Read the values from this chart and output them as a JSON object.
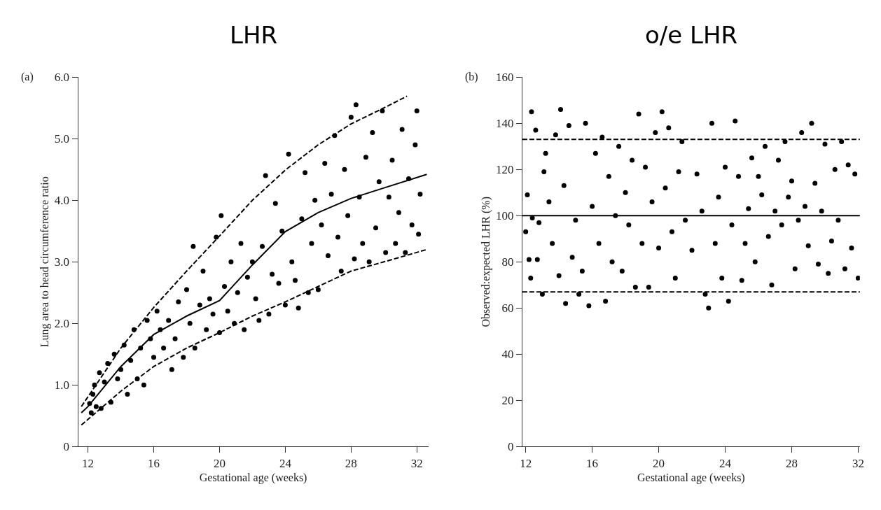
{
  "chart_data": [
    {
      "type": "scatter",
      "title": "LHR",
      "xlabel": "Gestational age (weeks)",
      "ylabel": "Lung area to head circumference ratio",
      "annotations": [
        "(a)"
      ],
      "xlim": [
        11.4,
        32.7
      ],
      "xticks": [
        12,
        16,
        20,
        24,
        28,
        32
      ],
      "ylim": [
        0,
        6
      ],
      "yticks": [
        0,
        {
          "value": 1,
          "label": "1.0"
        },
        {
          "value": 2,
          "label": "2.0"
        },
        {
          "value": 3,
          "label": "3.0"
        },
        {
          "value": 4,
          "label": "4.0"
        },
        {
          "value": 5,
          "label": "5.0"
        },
        {
          "value": 6,
          "label": "6.0"
        }
      ],
      "series": [
        {
          "marker": "circle",
          "color": "#000000",
          "x": [
            12.1,
            12.2,
            12.3,
            12.4,
            12.5,
            12.7,
            12.8,
            13.0,
            13.2,
            13.4,
            13.6,
            13.8,
            14.0,
            14.2,
            14.4,
            14.6,
            14.8,
            15.0,
            15.2,
            15.4,
            15.6,
            15.8,
            16.0,
            16.2,
            16.4,
            16.6,
            16.9,
            17.1,
            17.3,
            17.5,
            17.8,
            18.0,
            18.2,
            18.4,
            18.5,
            18.8,
            19.0,
            19.2,
            19.4,
            19.6,
            19.8,
            20.0,
            20.1,
            20.3,
            20.5,
            20.7,
            20.9,
            21.1,
            21.3,
            21.5,
            21.7,
            22.0,
            22.2,
            22.4,
            22.6,
            22.8,
            23.0,
            23.2,
            23.4,
            23.6,
            23.8,
            24.0,
            24.2,
            24.4,
            24.6,
            24.8,
            25.0,
            25.2,
            25.4,
            25.6,
            25.8,
            26.0,
            26.2,
            26.4,
            26.6,
            26.8,
            27.0,
            27.2,
            27.4,
            27.6,
            27.8,
            28.0,
            28.2,
            28.3,
            28.5,
            28.7,
            28.9,
            29.1,
            29.3,
            29.5,
            29.7,
            29.9,
            30.1,
            30.3,
            30.5,
            30.7,
            30.9,
            31.1,
            31.3,
            31.5,
            31.7,
            31.9,
            32.0,
            32.1,
            32.2
          ],
          "values": [
            0.7,
            0.55,
            0.85,
            1.0,
            0.65,
            1.2,
            0.62,
            1.05,
            1.35,
            0.72,
            1.5,
            1.1,
            1.25,
            1.65,
            0.85,
            1.4,
            1.9,
            1.1,
            1.6,
            1.0,
            2.05,
            1.75,
            1.45,
            2.2,
            1.9,
            1.6,
            2.05,
            1.25,
            1.75,
            2.35,
            1.45,
            2.55,
            2.0,
            3.25,
            1.6,
            2.3,
            2.85,
            1.9,
            2.4,
            2.15,
            3.4,
            1.85,
            3.75,
            2.6,
            2.2,
            3.0,
            2.0,
            2.5,
            3.3,
            1.9,
            2.75,
            3.0,
            2.4,
            2.05,
            3.25,
            4.4,
            2.15,
            2.8,
            3.95,
            2.65,
            3.5,
            2.3,
            4.75,
            3.0,
            2.7,
            2.25,
            3.7,
            4.45,
            2.5,
            3.3,
            4.0,
            2.55,
            3.6,
            4.6,
            3.1,
            4.1,
            5.05,
            3.4,
            2.85,
            4.5,
            3.75,
            5.35,
            3.05,
            5.55,
            4.05,
            3.3,
            4.7,
            3.0,
            5.1,
            3.55,
            4.3,
            5.45,
            3.15,
            4.05,
            4.65,
            3.3,
            3.8,
            5.15,
            3.15,
            4.35,
            3.6,
            4.9,
            5.45,
            3.45,
            4.1
          ]
        },
        {
          "type": "line",
          "color": "#000000",
          "line_style": "solid",
          "x": [
            11.6,
            12,
            14,
            16,
            18,
            20,
            22,
            24,
            26,
            28,
            30,
            32.6
          ],
          "values": [
            0.55,
            0.65,
            1.3,
            1.82,
            2.12,
            2.37,
            2.95,
            3.49,
            3.8,
            4.03,
            4.2,
            4.42
          ]
        },
        {
          "type": "line",
          "color": "#000000",
          "line_style": "dashed",
          "x": [
            11.6,
            14,
            16,
            18,
            20,
            22,
            24,
            26,
            28,
            30,
            31.4
          ],
          "values": [
            0.65,
            1.6,
            2.26,
            2.85,
            3.42,
            4.0,
            4.49,
            4.9,
            5.24,
            5.5,
            5.69
          ]
        },
        {
          "type": "line",
          "color": "#000000",
          "line_style": "dashed",
          "x": [
            11.6,
            14,
            16,
            18,
            20,
            22,
            24,
            26,
            28,
            30,
            32.6
          ],
          "values": [
            0.35,
            0.9,
            1.3,
            1.6,
            1.85,
            2.12,
            2.35,
            2.6,
            2.85,
            3.0,
            3.2
          ]
        }
      ]
    },
    {
      "type": "scatter",
      "title": "o/e LHR",
      "xlabel": "Gestational age (weeks)",
      "ylabel": "Observed:expected LHR (%)",
      "annotations": [
        "(b)"
      ],
      "xlim": [
        11.8,
        32.1
      ],
      "xticks": [
        12,
        16,
        20,
        24,
        28,
        32
      ],
      "ylim": [
        0,
        160
      ],
      "yticks": [
        0,
        20,
        40,
        60,
        80,
        100,
        120,
        140,
        160
      ],
      "ref_lines": [
        {
          "axis": "y",
          "value": 100,
          "color": "#000000",
          "line_style": "solid"
        },
        {
          "axis": "y",
          "value": 133,
          "color": "#000000",
          "line_style": "dashed"
        },
        {
          "axis": "y",
          "value": 67,
          "color": "#000000",
          "line_style": "dashed"
        }
      ],
      "series": [
        {
          "marker": "circle",
          "color": "#000000",
          "x": [
            12.0,
            12.1,
            12.2,
            12.3,
            12.35,
            12.4,
            12.6,
            12.7,
            12.8,
            13.0,
            13.1,
            13.2,
            13.4,
            13.6,
            13.8,
            14.0,
            14.1,
            14.3,
            14.4,
            14.6,
            14.8,
            15.0,
            15.2,
            15.4,
            15.6,
            15.8,
            16.0,
            16.2,
            16.4,
            16.6,
            16.8,
            17.0,
            17.2,
            17.4,
            17.6,
            17.8,
            18.0,
            18.2,
            18.4,
            18.6,
            18.8,
            19.0,
            19.2,
            19.4,
            19.6,
            19.8,
            20.0,
            20.2,
            20.4,
            20.6,
            20.8,
            21.0,
            21.2,
            21.4,
            21.6,
            22.0,
            22.3,
            22.6,
            22.8,
            23.0,
            23.2,
            23.4,
            23.6,
            23.8,
            24.0,
            24.2,
            24.4,
            24.6,
            24.8,
            25.0,
            25.2,
            25.4,
            25.6,
            25.8,
            26.0,
            26.2,
            26.4,
            26.6,
            26.8,
            27.0,
            27.2,
            27.4,
            27.6,
            27.8,
            28.0,
            28.2,
            28.4,
            28.6,
            28.8,
            29.0,
            29.2,
            29.4,
            29.6,
            29.8,
            30.0,
            30.2,
            30.4,
            30.6,
            30.8,
            31.0,
            31.2,
            31.4,
            31.6,
            31.8,
            32.0
          ],
          "values": [
            93,
            109,
            81,
            73,
            145,
            99,
            137,
            81,
            97,
            66,
            119,
            127,
            106,
            88,
            135,
            74,
            146,
            113,
            62,
            139,
            82,
            98,
            66,
            76,
            140,
            61,
            104,
            127,
            88,
            134,
            63,
            117,
            80,
            100,
            130,
            76,
            110,
            96,
            124,
            69,
            144,
            88,
            121,
            69,
            106,
            136,
            86,
            145,
            112,
            138,
            93,
            73,
            119,
            132,
            98,
            85,
            118,
            102,
            66,
            60,
            140,
            88,
            108,
            73,
            121,
            63,
            96,
            141,
            117,
            72,
            88,
            103,
            125,
            80,
            117,
            109,
            130,
            91,
            70,
            102,
            124,
            96,
            132,
            108,
            115,
            77,
            98,
            136,
            104,
            87,
            140,
            114,
            79,
            102,
            131,
            75,
            89,
            120,
            98,
            132,
            77,
            122,
            86,
            118,
            73
          ]
        }
      ]
    }
  ]
}
